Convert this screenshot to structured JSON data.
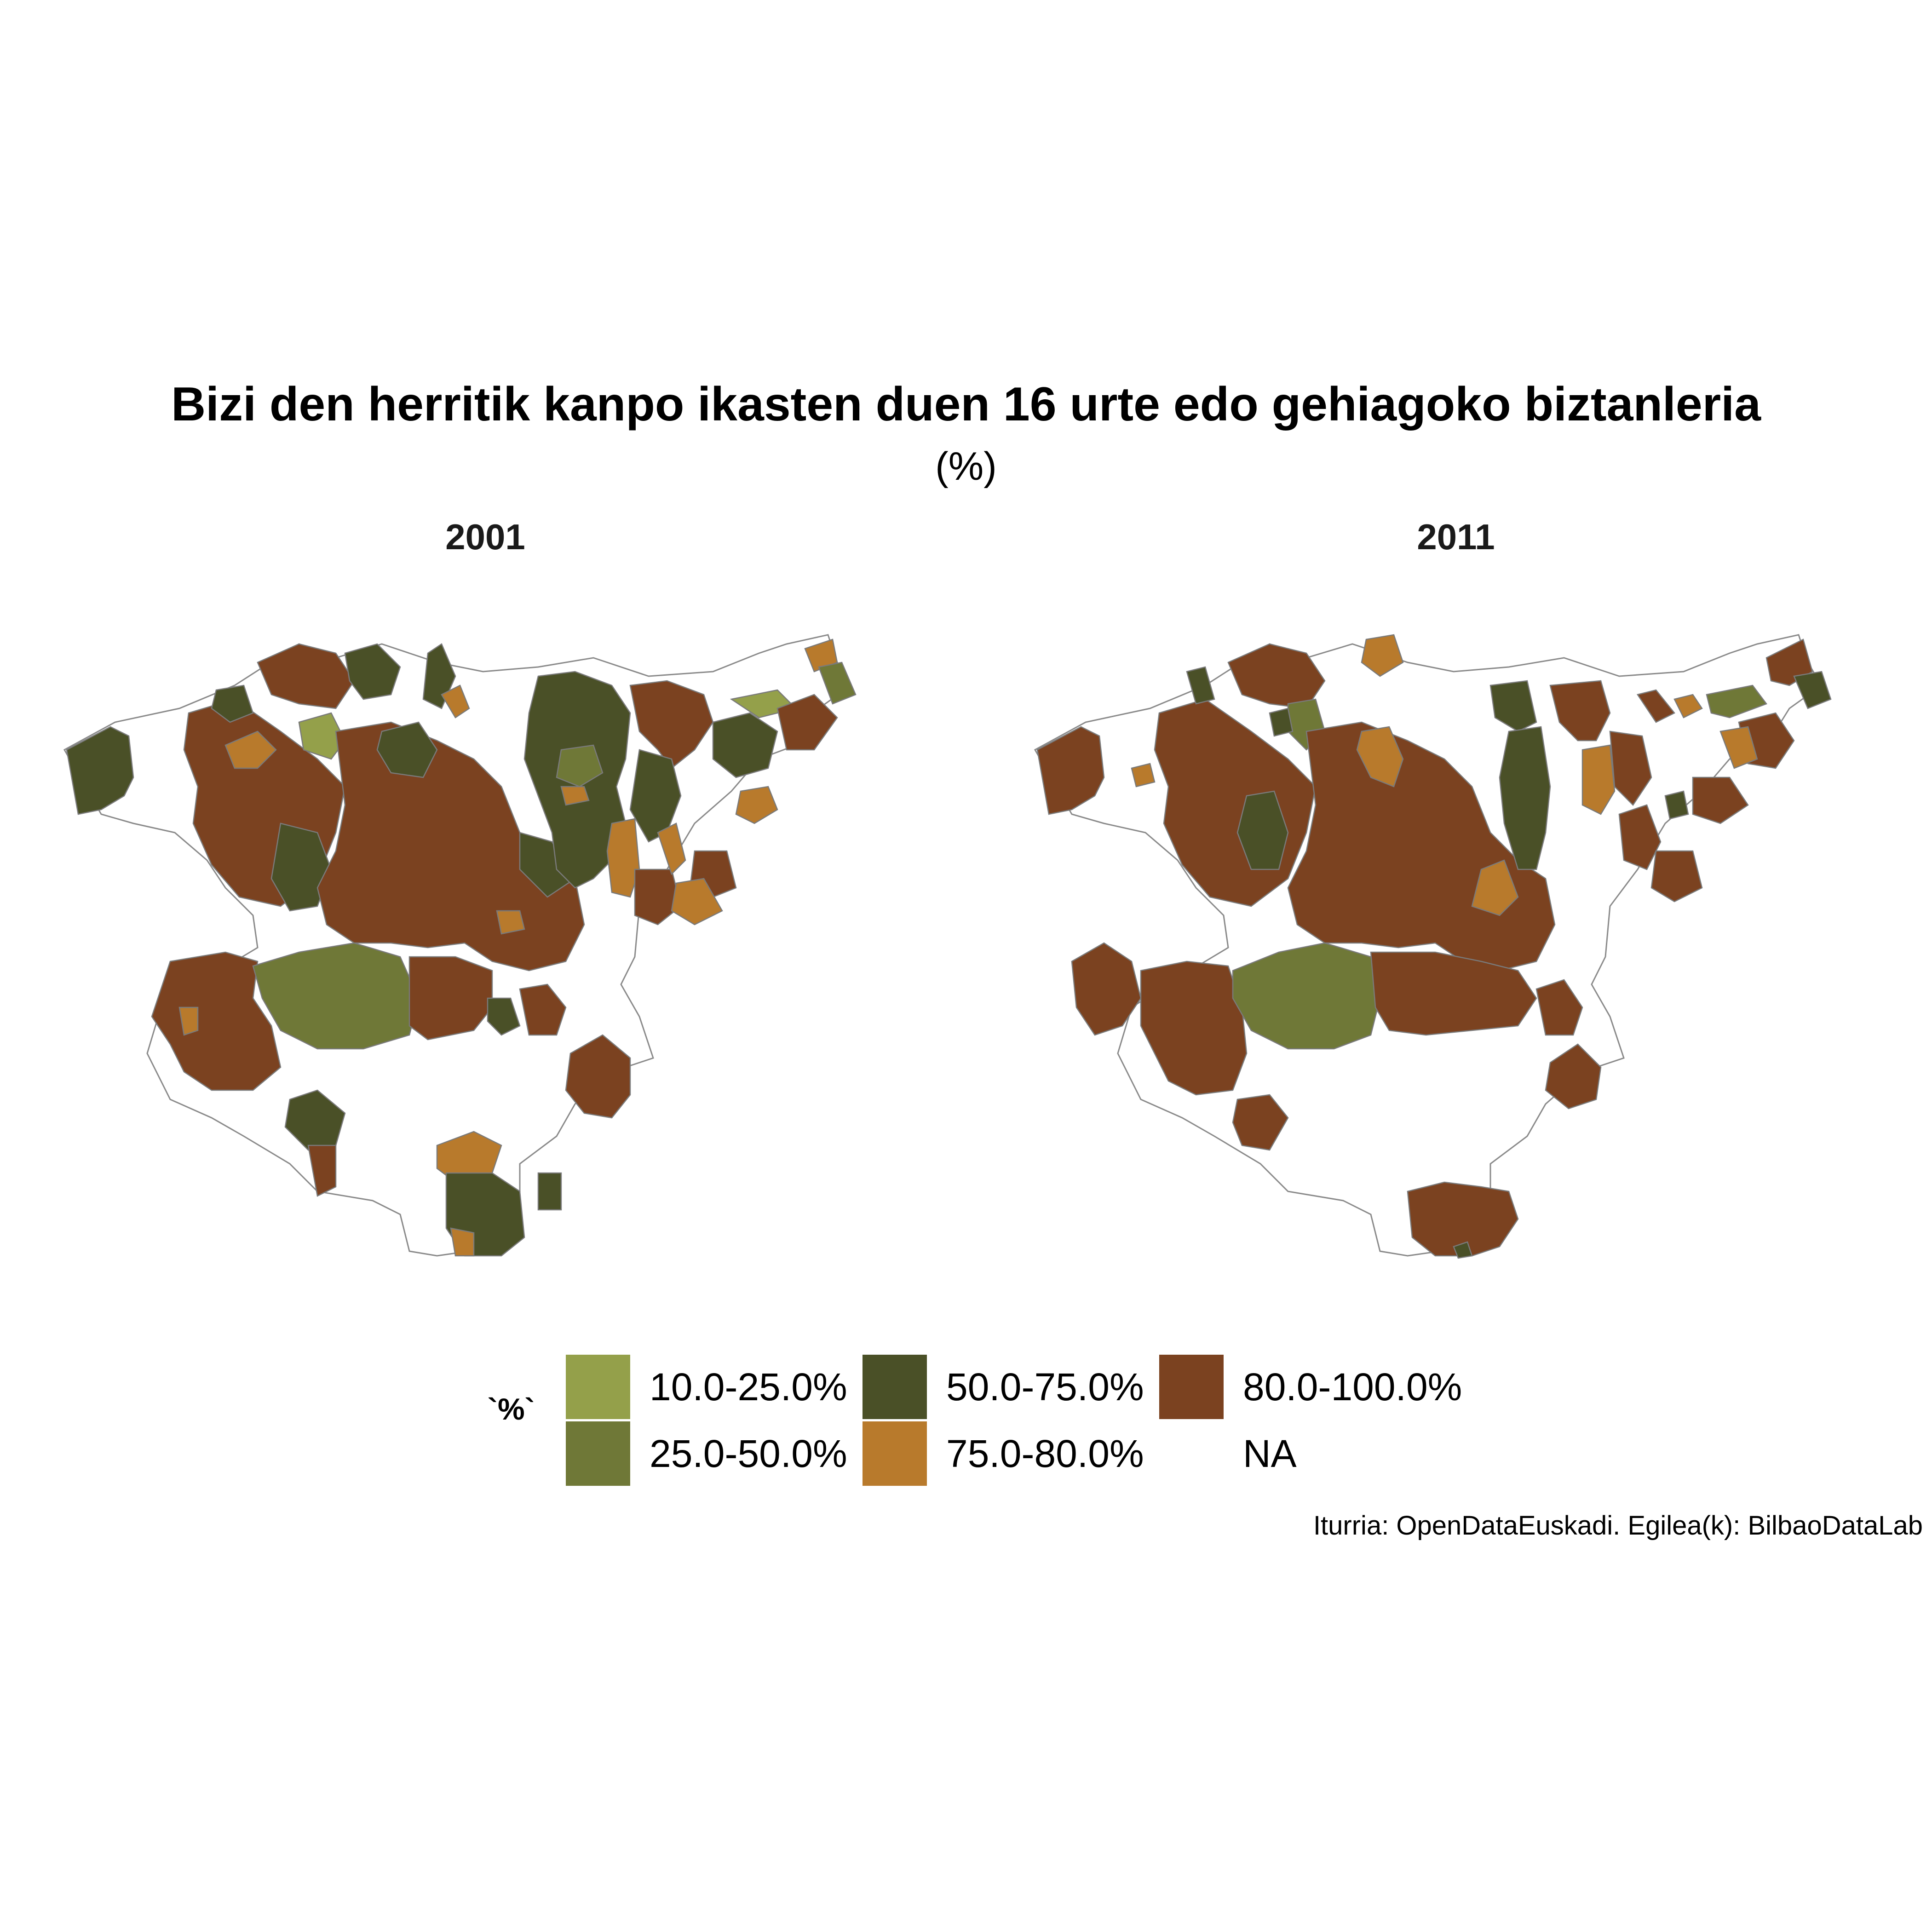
{
  "title": "Bizi den herritik kanpo ikasten duen 16 urte edo gehiagoko biztanleria",
  "subtitle": "(%)",
  "facets": [
    {
      "label": "2001"
    },
    {
      "label": "2011"
    }
  ],
  "legend": {
    "title": "`%`",
    "items": [
      {
        "label": "10.0-25.0%",
        "color": "#94a04a"
      },
      {
        "label": "25.0-50.0%",
        "color": "#6f7837"
      },
      {
        "label": "50.0-75.0%",
        "color": "#4a5027"
      },
      {
        "label": "75.0-80.0%",
        "color": "#b87a2c"
      },
      {
        "label": "80.0-100.0%",
        "color": "#7b4220"
      },
      {
        "label": "NA",
        "color": "#ffffff"
      }
    ]
  },
  "caption": "Iturria: OpenDataEuskadi. Egilea(k): BilbaoDataLab",
  "colors": {
    "border": "#7a7a7a",
    "na_border": "#8a8a8a"
  }
}
